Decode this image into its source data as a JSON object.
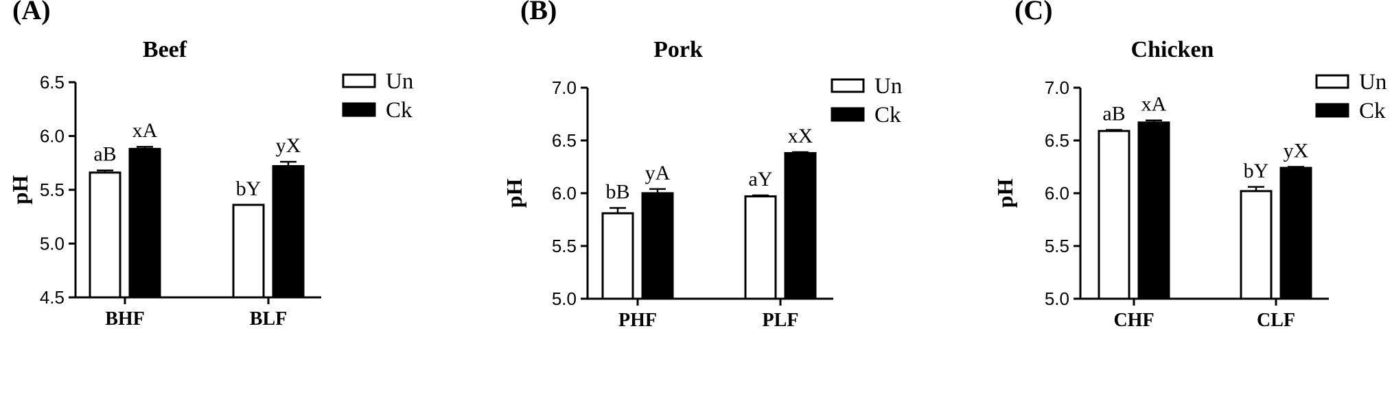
{
  "chart_data": [
    {
      "type": "bar",
      "panel": "(A)",
      "title": "Beef",
      "ylabel": "pH",
      "xlabel": "",
      "ylim": [
        4.5,
        6.5
      ],
      "yticks": [
        "4.5",
        "5.0",
        "5.5",
        "6.0",
        "6.5"
      ],
      "categories": [
        "BHF",
        "BLF"
      ],
      "series": [
        {
          "name": "Un",
          "values": [
            5.66,
            5.36
          ],
          "errors": [
            0.02,
            0.0
          ],
          "labels": [
            "aB",
            "bY"
          ],
          "fill": "#ffffff"
        },
        {
          "name": "Ck",
          "values": [
            5.88,
            5.72
          ],
          "errors": [
            0.02,
            0.04
          ],
          "labels": [
            "xA",
            "yX"
          ],
          "fill": "#000000"
        }
      ],
      "legend_position": "top-right"
    },
    {
      "type": "bar",
      "panel": "(B)",
      "title": "Pork",
      "ylabel": "pH",
      "xlabel": "",
      "ylim": [
        5.0,
        7.0
      ],
      "yticks": [
        "5.0",
        "5.5",
        "6.0",
        "6.5",
        "7.0"
      ],
      "categories": [
        "PHF",
        "PLF"
      ],
      "series": [
        {
          "name": "Un",
          "values": [
            5.81,
            5.97
          ],
          "errors": [
            0.05,
            0.01
          ],
          "labels": [
            "bB",
            "aY"
          ],
          "fill": "#ffffff"
        },
        {
          "name": "Ck",
          "values": [
            6.0,
            6.38
          ],
          "errors": [
            0.04,
            0.01
          ],
          "labels": [
            "yA",
            "xX"
          ],
          "fill": "#000000"
        }
      ],
      "legend_position": "top-right"
    },
    {
      "type": "bar",
      "panel": "(C)",
      "title": "Chicken",
      "ylabel": "pH",
      "xlabel": "",
      "ylim": [
        5.0,
        7.0
      ],
      "yticks": [
        "5.0",
        "5.5",
        "6.0",
        "6.5",
        "7.0"
      ],
      "categories": [
        "CHF",
        "CLF"
      ],
      "series": [
        {
          "name": "Un",
          "values": [
            6.59,
            6.02
          ],
          "errors": [
            0.01,
            0.04
          ],
          "labels": [
            "aB",
            "bY"
          ],
          "fill": "#ffffff"
        },
        {
          "name": "Ck",
          "values": [
            6.67,
            6.24
          ],
          "errors": [
            0.02,
            0.01
          ],
          "labels": [
            "xA",
            "yX"
          ],
          "fill": "#000000"
        }
      ],
      "legend_position": "top-right"
    }
  ]
}
